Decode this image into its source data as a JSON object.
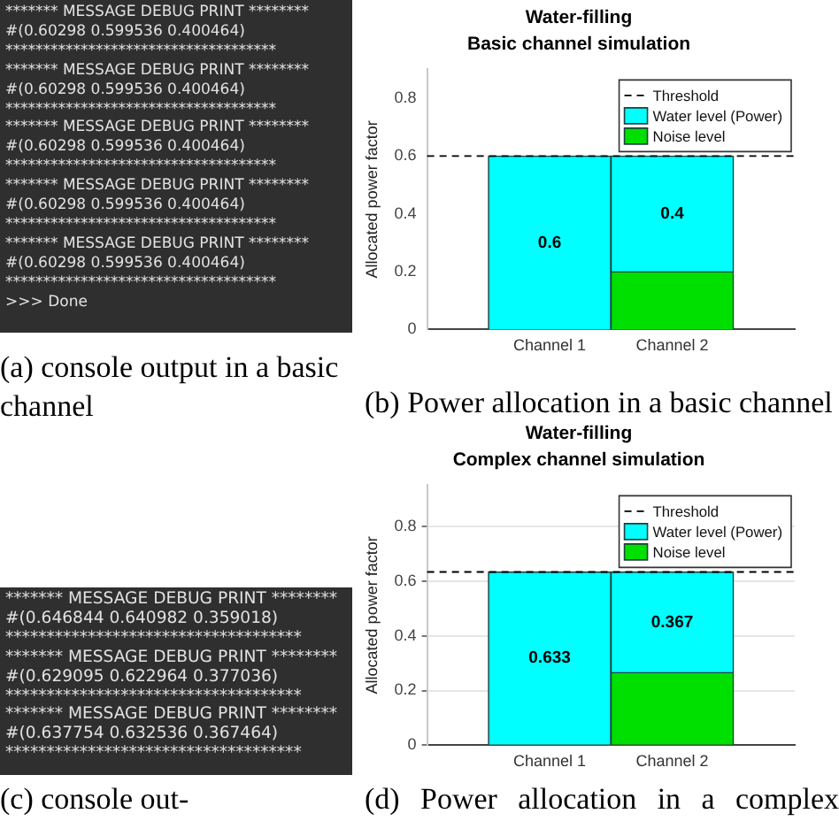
{
  "chart_data": [
    {
      "type": "other",
      "annotations": [
        "******* MESSAGE DEBUG PRINT ********",
        "#(0.60298 0.599536 0.400464)",
        "************************************",
        "******* MESSAGE DEBUG PRINT ********",
        "#(0.60298 0.599536 0.400464)",
        "************************************",
        "******* MESSAGE DEBUG PRINT ********",
        "#(0.60298 0.599536 0.400464)",
        "************************************",
        "******* MESSAGE DEBUG PRINT ********",
        "#(0.60298 0.599536 0.400464)",
        "************************************",
        "******* MESSAGE DEBUG PRINT ********",
        "#(0.60298 0.599536 0.400464)",
        "************************************",
        ">>> Done",
        "(a) console output in a basic channel"
      ]
    },
    {
      "type": "bar",
      "title": "Water-filling",
      "subtitle": "Basic channel simulation",
      "ylabel": "Allocated power factor",
      "categories": [
        "Channel 1",
        "Channel 2"
      ],
      "stacked": true,
      "series": [
        {
          "name": "Noise level",
          "color": "#00e000",
          "values": [
            0,
            0.2
          ]
        },
        {
          "name": "Water level (Power)",
          "color": "#00ffff",
          "values": [
            0.6,
            0.4
          ],
          "value_labels": [
            "0.6",
            "0.4"
          ]
        }
      ],
      "ylim": [
        0,
        0.9
      ],
      "yticks": [
        0,
        0.2,
        0.4,
        0.6,
        0.8
      ],
      "legend": "top right",
      "ref_lines": [
        {
          "axis": "y",
          "value": 0.6,
          "label": "Threshold",
          "line_style": "dashed",
          "color": "#000000"
        }
      ],
      "annotations": [
        "(b) Power allocation in a basic channel"
      ]
    },
    {
      "type": "other",
      "annotations": [
        "******* MESSAGE DEBUG PRINT ********",
        "#(0.646844 0.640982 0.359018)",
        "************************************",
        "******* MESSAGE DEBUG PRINT ********",
        "#(0.629095 0.622964 0.377036)",
        "************************************",
        "******* MESSAGE DEBUG PRINT ********",
        "#(0.637754 0.632536 0.367464)",
        "************************************",
        "(c) console out-"
      ]
    },
    {
      "type": "bar",
      "title": "Water-filling",
      "subtitle": "Complex channel simulation",
      "ylabel": "Allocated power factor",
      "categories": [
        "Channel 1",
        "Channel 2"
      ],
      "stacked": true,
      "series": [
        {
          "name": "Noise level",
          "color": "#00e000",
          "values": [
            0,
            0.266
          ]
        },
        {
          "name": "Water level (Power)",
          "color": "#00ffff",
          "values": [
            0.633,
            0.367
          ],
          "value_labels": [
            "0.633",
            "0.367"
          ]
        }
      ],
      "ylim": [
        0,
        0.95
      ],
      "yticks": [
        0,
        0.2,
        0.4,
        0.6,
        0.8
      ],
      "grid": "y",
      "legend": "top right",
      "ref_lines": [
        {
          "axis": "y",
          "value": 0.633,
          "label": "Threshold",
          "line_style": "dashed",
          "color": "#000000"
        }
      ],
      "annotations": [
        "(d) Power allocation in a complex"
      ]
    }
  ]
}
